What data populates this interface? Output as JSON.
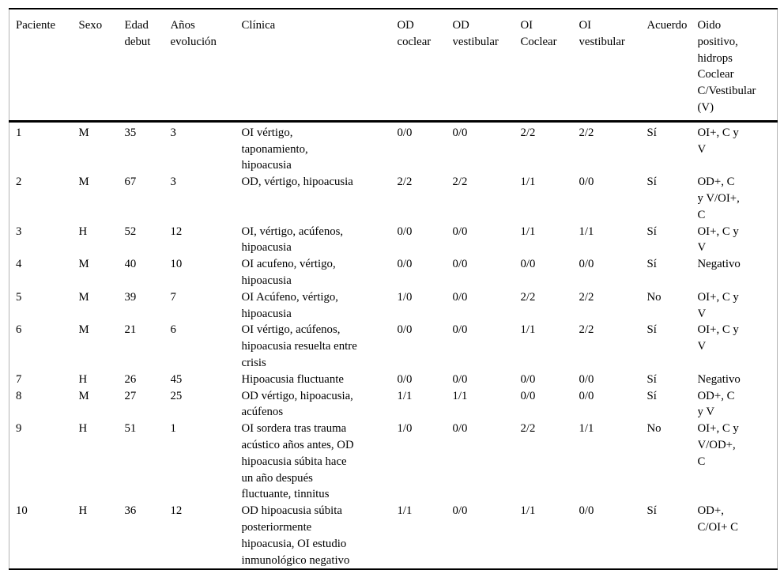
{
  "table": {
    "columns": [
      {
        "key": "paciente",
        "label": "Paciente"
      },
      {
        "key": "sexo",
        "label": "Sexo"
      },
      {
        "key": "edad_debut",
        "label": "Edad\ndebut"
      },
      {
        "key": "anos_evolucion",
        "label": "Años\nevolución"
      },
      {
        "key": "clinica",
        "label": "Clínica"
      },
      {
        "key": "od_coclear",
        "label": "OD\ncoclear"
      },
      {
        "key": "od_vestibular",
        "label": "OD\nvestibular"
      },
      {
        "key": "oi_coclear",
        "label": "OI\nCoclear"
      },
      {
        "key": "oi_vestibular",
        "label": "OI\nvestibular"
      },
      {
        "key": "acuerdo",
        "label": "Acuerdo"
      },
      {
        "key": "oido_positivo",
        "label": "Oido\npositivo,\nhidrops\nCoclear\nC/Vestibular\n(V)"
      }
    ],
    "rows": [
      {
        "cells": [
          "1",
          "M",
          "35",
          "3",
          "OI vértigo,\ntaponamiento,\nhipoacusia",
          "0/0",
          "0/0",
          "2/2",
          "2/2",
          "Sí",
          "OI+, C y\nV"
        ]
      },
      {
        "cells": [
          "2",
          "M",
          "67",
          "3",
          "OD, vértigo, hipoacusia",
          "2/2",
          "2/2",
          "1/1",
          "0/0",
          "Sí",
          "OD+, C\ny V/OI+,\nC"
        ]
      },
      {
        "cells": [
          "3",
          "H",
          "52",
          "12",
          "OI, vértigo, acúfenos,\nhipoacusia",
          "0/0",
          "0/0",
          "1/1",
          "1/1",
          "Sí",
          "OI+, C y\nV"
        ]
      },
      {
        "cells": [
          "4",
          "M",
          "40",
          "10",
          "OI acufeno, vértigo,\nhipoacusia",
          "0/0",
          "0/0",
          "0/0",
          "0/0",
          "Sí",
          "Negativo"
        ]
      },
      {
        "cells": [
          "5",
          "M",
          "39",
          "7",
          "OI Acúfeno, vértigo,\nhipoacusia",
          "1/0",
          "0/0",
          "2/2",
          "2/2",
          "No",
          "OI+, C y\nV"
        ]
      },
      {
        "cells": [
          "6",
          "M",
          "21",
          "6",
          "OI vértigo, acúfenos,\nhipoacusia resuelta entre\ncrisis",
          "0/0",
          "0/0",
          "1/1",
          "2/2",
          "Sí",
          "OI+, C y\nV"
        ]
      },
      {
        "cells": [
          "7",
          "H",
          "26",
          "45",
          "Hipoacusia fluctuante",
          "0/0",
          "0/0",
          "0/0",
          "0/0",
          "Sí",
          "Negativo"
        ]
      },
      {
        "cells": [
          "8",
          "M",
          "27",
          "25",
          "OD vértigo, hipoacusia,\nacúfenos",
          "1/1",
          "1/1",
          "0/0",
          "0/0",
          "Sí",
          "OD+, C\ny V"
        ]
      },
      {
        "cells": [
          "9",
          "H",
          "51",
          "1",
          "OI sordera tras trauma\nacústico años antes, OD\nhipoacusia súbita hace\nun año después\nfluctuante, tinnitus",
          "1/0",
          "0/0",
          "2/2",
          "1/1",
          "No",
          "OI+, C y\nV/OD+,\nC"
        ]
      },
      {
        "cells": [
          "10",
          "H",
          "36",
          "12",
          "OD hipoacusia súbita\nposteriormente\nhipoacusia, OI estudio\ninmunológico negativo",
          "1/1",
          "0/0",
          "1/1",
          "0/0",
          "Sí",
          "OD+,\nC/OI+ C"
        ]
      }
    ]
  }
}
